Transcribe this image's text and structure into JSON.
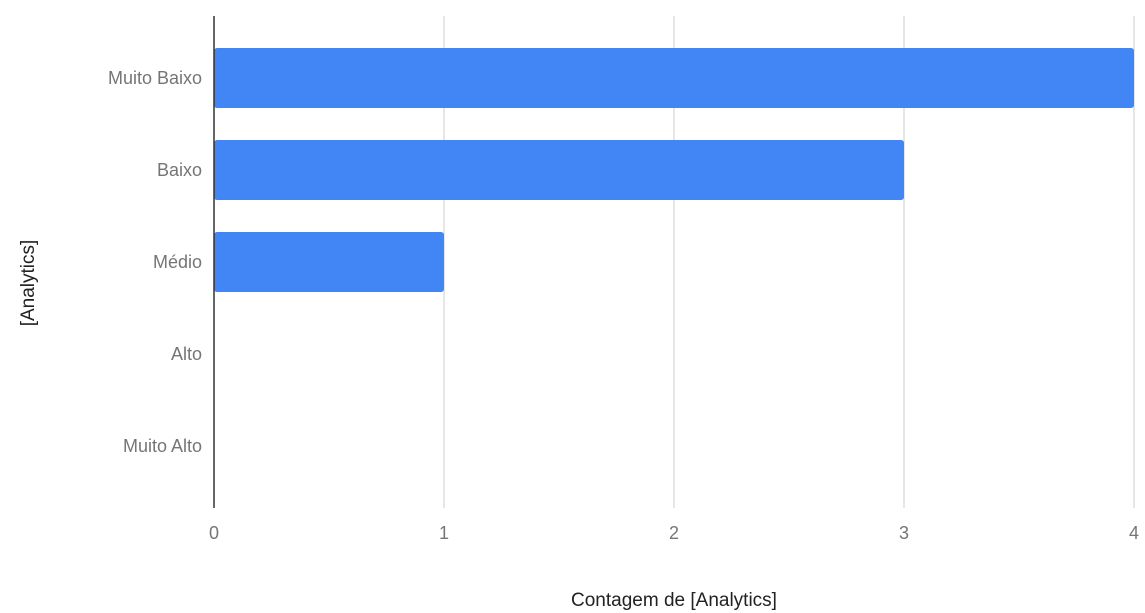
{
  "chart_data": {
    "type": "bar",
    "orientation": "horizontal",
    "categories": [
      "Muito Baixo",
      "Baixo",
      "Médio",
      "Alto",
      "Muito Alto"
    ],
    "values": [
      4,
      3,
      1,
      0,
      0
    ],
    "xlabel": "Contagem de [Analytics]",
    "ylabel": "[Analytics]",
    "xlim": [
      0,
      4
    ],
    "xticks": [
      "0",
      "1",
      "2",
      "3",
      "4"
    ],
    "grid": "vertical",
    "legend": "none",
    "bar_color": "#4285f4"
  }
}
